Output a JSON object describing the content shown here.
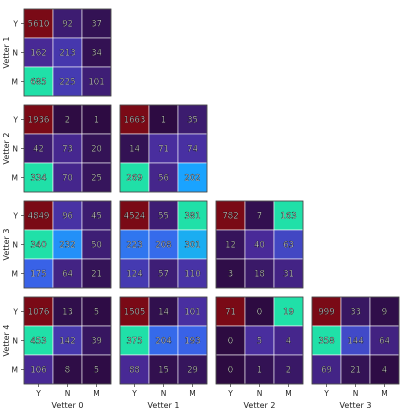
{
  "chart_data": {
    "type": "heatmap",
    "row_labels": [
      "Vetter 1",
      "Vetter 2",
      "Vetter 3",
      "Vetter 4"
    ],
    "col_labels": [
      "Vetter 0",
      "Vetter 1",
      "Vetter 2",
      "Vetter 3"
    ],
    "tick_labels": [
      "Y",
      "N",
      "M"
    ],
    "color_scale": [
      "#2d0b41",
      "#4a2b9a",
      "#3b5ee6",
      "#1aa3ff",
      "#20e0a8"
    ],
    "high_color": "#7a0a16",
    "panels": [
      {
        "row": "Vetter 1",
        "col": "Vetter 0",
        "values": [
          [
            5610,
            92,
            37
          ],
          [
            162,
            213,
            34
          ],
          [
            685,
            225,
            101
          ]
        ]
      },
      {
        "row": "Vetter 2",
        "col": "Vetter 0",
        "values": [
          [
            1936,
            2,
            1
          ],
          [
            42,
            73,
            20
          ],
          [
            334,
            70,
            25
          ]
        ]
      },
      {
        "row": "Vetter 2",
        "col": "Vetter 1",
        "values": [
          [
            1663,
            1,
            35
          ],
          [
            14,
            71,
            74
          ],
          [
            269,
            56,
            202
          ]
        ]
      },
      {
        "row": "Vetter 3",
        "col": "Vetter 0",
        "values": [
          [
            4849,
            96,
            45
          ],
          [
            340,
            232,
            50
          ],
          [
            175,
            64,
            21
          ]
        ]
      },
      {
        "row": "Vetter 3",
        "col": "Vetter 1",
        "values": [
          [
            4524,
            55,
            381
          ],
          [
            223,
            208,
            301
          ],
          [
            124,
            57,
            110
          ]
        ]
      },
      {
        "row": "Vetter 3",
        "col": "Vetter 2",
        "values": [
          [
            782,
            7,
            163
          ],
          [
            12,
            40,
            63
          ],
          [
            3,
            18,
            31
          ]
        ]
      },
      {
        "row": "Vetter 4",
        "col": "Vetter 0",
        "values": [
          [
            1076,
            13,
            5
          ],
          [
            453,
            142,
            39
          ],
          [
            106,
            8,
            5
          ]
        ]
      },
      {
        "row": "Vetter 4",
        "col": "Vetter 1",
        "values": [
          [
            1505,
            14,
            101
          ],
          [
            375,
            204,
            193
          ],
          [
            88,
            15,
            29
          ]
        ]
      },
      {
        "row": "Vetter 4",
        "col": "Vetter 2",
        "values": [
          [
            71,
            0,
            19
          ],
          [
            0,
            5,
            4
          ],
          [
            0,
            1,
            2
          ]
        ]
      },
      {
        "row": "Vetter 4",
        "col": "Vetter 3",
        "values": [
          [
            999,
            33,
            9
          ],
          [
            358,
            144,
            64
          ],
          [
            69,
            21,
            4
          ]
        ]
      }
    ]
  }
}
